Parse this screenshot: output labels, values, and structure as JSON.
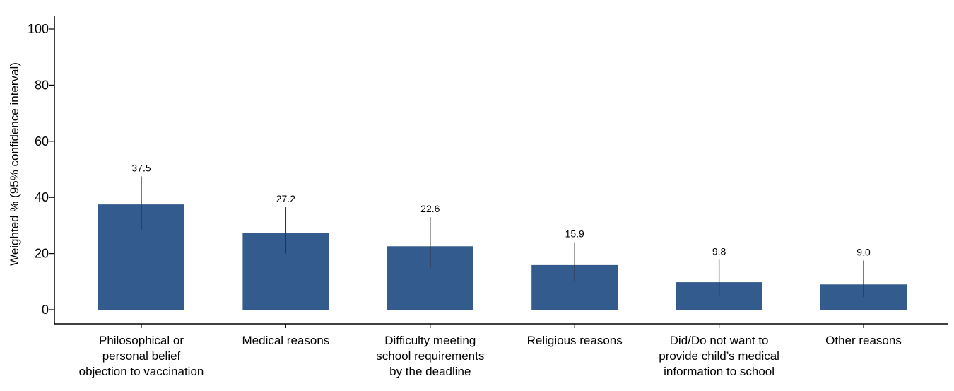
{
  "chart_data": {
    "type": "bar",
    "categories": [
      [
        "Philosophical or",
        "personal belief",
        "objection to vaccination"
      ],
      [
        "Medical reasons"
      ],
      [
        "Difficulty meeting",
        "school requirements",
        "by the deadline"
      ],
      [
        "Religious reasons"
      ],
      [
        "Did/Do not want to",
        "provide child’s medical",
        "information to school"
      ],
      [
        "Other reasons"
      ]
    ],
    "values": [
      37.5,
      27.2,
      22.6,
      15.9,
      9.8,
      9.0
    ],
    "value_labels": [
      "37.5",
      "27.2",
      "22.6",
      "15.9",
      "9.8",
      "9.0"
    ],
    "ci_lower": [
      28.5,
      20.0,
      15.0,
      10.0,
      5.0,
      4.5
    ],
    "ci_upper": [
      47.5,
      36.5,
      33.0,
      24.0,
      17.8,
      17.5
    ],
    "ylabel": "Weighted % (95% confidence interval)",
    "xlabel": "",
    "title": "",
    "ylim": [
      0,
      100
    ],
    "yticks": [
      0,
      20,
      40,
      60,
      80,
      100
    ],
    "grid": false,
    "colors": {
      "bar": "#335b8e",
      "errorbar": "#333333",
      "axis": "#000000"
    }
  }
}
